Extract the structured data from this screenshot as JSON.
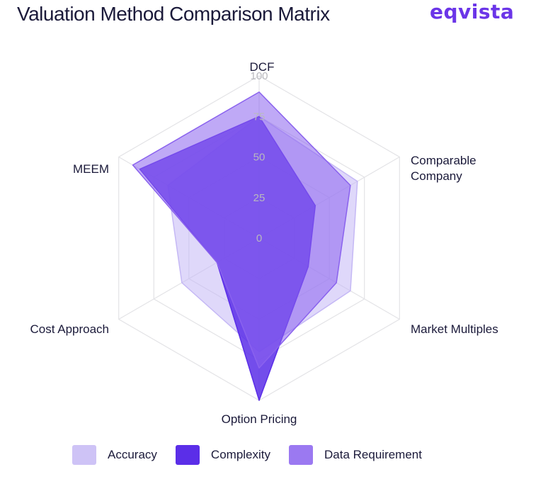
{
  "header": {
    "title": "Valuation Method Comparison Matrix",
    "brand": "eqvista",
    "brand_color": "#6b35e8"
  },
  "chart_data": {
    "type": "radar",
    "title": "Valuation Method Comparison Matrix",
    "axes": [
      "DCF",
      "Comparable\nCompany",
      "Market Multiples",
      "Option Pricing",
      "Cost Approach",
      "MEEM"
    ],
    "radial_ticks": [
      "0",
      "25",
      "50",
      "75",
      "100"
    ],
    "range": [
      0,
      100
    ],
    "grid": true,
    "legend_position": "bottom",
    "series": [
      {
        "name": "Accuracy",
        "values": [
          75,
          70,
          65,
          70,
          55,
          65
        ],
        "color": "#c5b8f5",
        "opacity": 0.55
      },
      {
        "name": "Complexity",
        "values": [
          75,
          40,
          35,
          100,
          30,
          85
        ],
        "color": "#5b2ee8",
        "opacity": 0.85
      },
      {
        "name": "Data Requirement",
        "values": [
          90,
          65,
          55,
          80,
          30,
          90
        ],
        "color": "#8a62ee",
        "opacity": 0.55
      }
    ]
  }
}
